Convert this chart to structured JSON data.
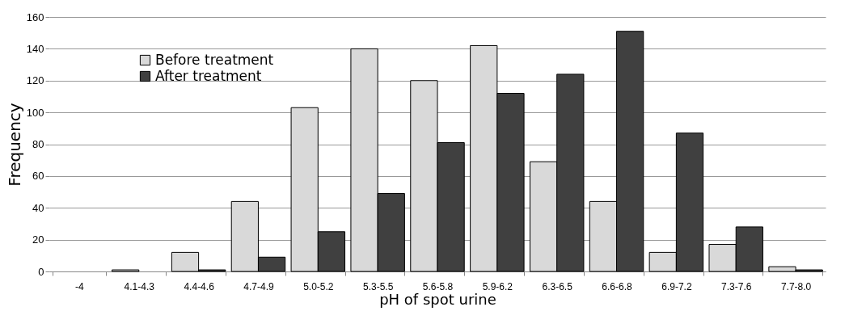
{
  "chart_data": {
    "type": "bar",
    "xlabel": "pH of spot urine",
    "ylabel": "Frequency",
    "categories": [
      "-4",
      "4.1-4.3",
      "4.4-4.6",
      "4.7-4.9",
      "5.0-5.2",
      "5.3-5.5",
      "5.6-5.8",
      "5.9-6.2",
      "6.3-6.5",
      "6.6-6.8",
      "6.9-7.2",
      "7.3-7.6",
      "7.7-8.0"
    ],
    "series": [
      {
        "name": "Before treatment",
        "color": "#d9d9d9",
        "values": [
          0,
          1,
          12,
          44,
          103,
          140,
          120,
          142,
          69,
          44,
          12,
          17,
          3
        ]
      },
      {
        "name": "After treatment",
        "color": "#404040",
        "values": [
          0,
          0,
          1,
          9,
          25,
          49,
          81,
          112,
          124,
          151,
          87,
          28,
          1
        ]
      }
    ],
    "ylim": [
      0,
      160
    ],
    "yticks": [
      0,
      20,
      40,
      60,
      80,
      100,
      120,
      140,
      160
    ],
    "grid": "y",
    "legend": "top left"
  }
}
